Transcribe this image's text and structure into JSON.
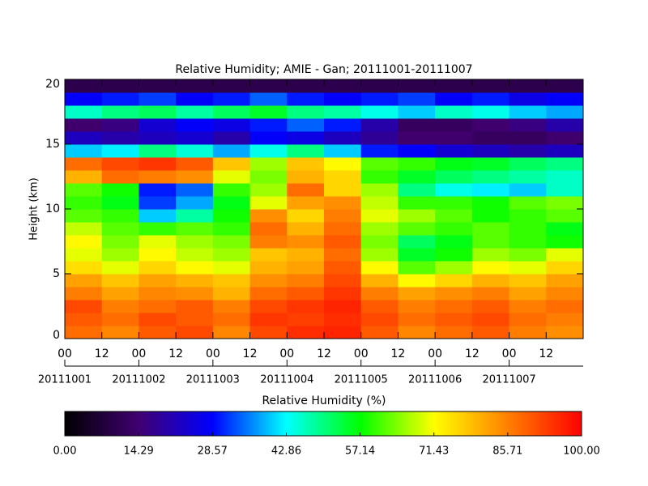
{
  "chart_data": {
    "type": "heatmap",
    "title": "Relative Humidity; AMIE - Gan; 20111001-20111007",
    "ylabel": "Height (km)",
    "x": [
      6,
      18,
      30,
      42,
      54,
      66,
      78,
      90,
      102,
      114,
      126,
      138,
      150,
      162
    ],
    "y": [
      0.5,
      1.5,
      2.5,
      3.5,
      4.5,
      5.5,
      6.5,
      7.5,
      8.5,
      9.5,
      10.5,
      11.5,
      12.5,
      13.5,
      14.5,
      15.5,
      16.5,
      17.5,
      18.5,
      19.5
    ],
    "z": [
      [
        88,
        85,
        90,
        92,
        85,
        92,
        95,
        96,
        90,
        85,
        88,
        90,
        86,
        84
      ],
      [
        90,
        88,
        92,
        90,
        88,
        94,
        93,
        95,
        92,
        88,
        90,
        92,
        88,
        86
      ],
      [
        92,
        86,
        88,
        90,
        86,
        92,
        94,
        96,
        90,
        86,
        88,
        90,
        86,
        88
      ],
      [
        86,
        82,
        85,
        84,
        80,
        88,
        90,
        94,
        86,
        82,
        84,
        86,
        82,
        85
      ],
      [
        82,
        78,
        82,
        80,
        78,
        84,
        86,
        92,
        80,
        72,
        76,
        80,
        78,
        82
      ],
      [
        75,
        70,
        76,
        72,
        70,
        80,
        82,
        90,
        72,
        62,
        66,
        72,
        70,
        76
      ],
      [
        70,
        66,
        72,
        68,
        66,
        78,
        80,
        88,
        66,
        55,
        58,
        66,
        64,
        70
      ],
      [
        72,
        64,
        70,
        66,
        64,
        86,
        84,
        90,
        64,
        52,
        56,
        62,
        60,
        58
      ],
      [
        68,
        62,
        60,
        62,
        60,
        88,
        80,
        88,
        66,
        62,
        60,
        62,
        60,
        56
      ],
      [
        62,
        60,
        40,
        48,
        58,
        84,
        76,
        86,
        70,
        66,
        62,
        58,
        60,
        62
      ],
      [
        60,
        56,
        32,
        38,
        56,
        70,
        82,
        84,
        68,
        60,
        60,
        58,
        62,
        64
      ],
      [
        62,
        58,
        30,
        34,
        60,
        66,
        88,
        76,
        66,
        50,
        44,
        42,
        40,
        46
      ],
      [
        80,
        88,
        86,
        84,
        70,
        64,
        80,
        76,
        60,
        55,
        52,
        50,
        48,
        46
      ],
      [
        88,
        92,
        94,
        90,
        78,
        66,
        78,
        72,
        62,
        60,
        56,
        55,
        52,
        50
      ],
      [
        40,
        42,
        50,
        45,
        38,
        44,
        50,
        40,
        30,
        28,
        24,
        22,
        20,
        22
      ],
      [
        22,
        20,
        22,
        24,
        20,
        28,
        26,
        22,
        18,
        14,
        14,
        12,
        12,
        14
      ],
      [
        14,
        16,
        24,
        28,
        26,
        30,
        34,
        30,
        20,
        12,
        12,
        14,
        16,
        20
      ],
      [
        46,
        50,
        52,
        48,
        52,
        55,
        50,
        48,
        44,
        40,
        46,
        44,
        40,
        38
      ],
      [
        28,
        30,
        32,
        28,
        30,
        34,
        30,
        28,
        30,
        32,
        28,
        30,
        26,
        28
      ],
      [
        10,
        10,
        10,
        10,
        10,
        10,
        10,
        10,
        10,
        10,
        10,
        10,
        10,
        10
      ]
    ],
    "xlim": [
      0,
      168
    ],
    "ylim": [
      0,
      20
    ],
    "xticks": [
      {
        "value": 0,
        "label": "00"
      },
      {
        "value": 12,
        "label": "12"
      },
      {
        "value": 24,
        "label": "00"
      },
      {
        "value": 36,
        "label": "12"
      },
      {
        "value": 48,
        "label": "00"
      },
      {
        "value": 60,
        "label": "12"
      },
      {
        "value": 72,
        "label": "00"
      },
      {
        "value": 84,
        "label": "12"
      },
      {
        "value": 96,
        "label": "00"
      },
      {
        "value": 108,
        "label": "12"
      },
      {
        "value": 120,
        "label": "00"
      },
      {
        "value": 132,
        "label": "12"
      },
      {
        "value": 144,
        "label": "00"
      },
      {
        "value": 156,
        "label": "12"
      }
    ],
    "date_ticks": [
      {
        "value": 0,
        "label": "20111001"
      },
      {
        "value": 24,
        "label": "20111002"
      },
      {
        "value": 48,
        "label": "20111003"
      },
      {
        "value": 72,
        "label": "20111004"
      },
      {
        "value": 96,
        "label": "20111005"
      },
      {
        "value": 120,
        "label": "20111006"
      },
      {
        "value": 144,
        "label": "20111007"
      }
    ],
    "yticks": [
      0,
      5,
      10,
      15,
      20
    ],
    "colormap": [
      "#000000",
      "#400070",
      "#0000ff",
      "#00ffff",
      "#00ff00",
      "#ffff00",
      "#ff8000",
      "#ff0000"
    ],
    "clim": [
      0,
      100
    ],
    "colorbar_label": "Relative Humidity (%)",
    "colorbar_ticks": [
      {
        "value": 0,
        "label": "0.00"
      },
      14.29,
      28.57,
      42.86,
      57.14,
      71.43,
      85.71,
      {
        "value": 100,
        "label": "100.00"
      }
    ]
  }
}
